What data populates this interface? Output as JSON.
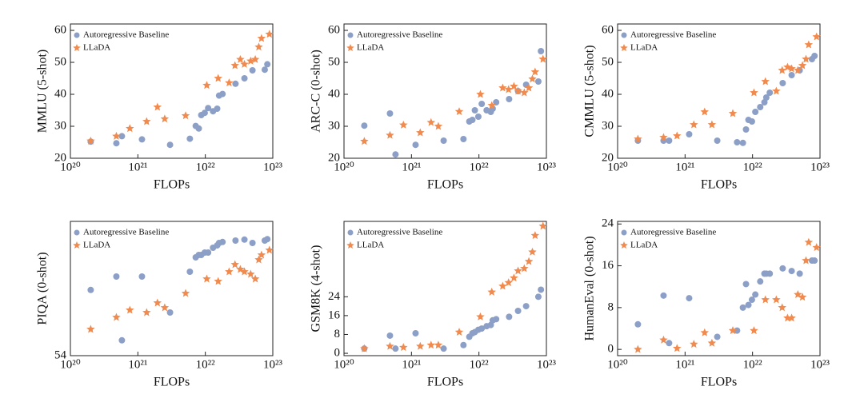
{
  "chart_data": [
    {
      "type": "scatter",
      "xlabel": "FLOPs",
      "ylabel": "MMLU (5-shot)",
      "xscale": "log",
      "legend": "upper left",
      "xlim": [
        1e+20,
        1e+23
      ],
      "xticks": [
        {
          "value": 1e+20,
          "label": "10²⁰"
        },
        {
          "value": 1e+21,
          "label": "10²¹"
        },
        {
          "value": 1e+22,
          "label": "10²²"
        },
        {
          "value": 1e+23,
          "label": "10²³"
        }
      ],
      "ylim": [
        20,
        62
      ],
      "yticks": [
        20,
        30,
        40,
        50,
        60
      ],
      "series": [
        {
          "name": "Autoregressive Baseline",
          "color": "#8c9fc6",
          "marker": "circle",
          "x": [
            2e+20,
            4.8e+20,
            5.8e+20,
            1.15e+21,
            3e+21,
            5.9e+21,
            7.2e+21,
            8e+21,
            8.7e+21,
            9.8e+21,
            1.1e+22,
            1.3e+22,
            1.5e+22,
            1.6e+22,
            1.8e+22,
            2.8e+22,
            3.8e+22,
            5e+22,
            7.6e+22,
            8.3e+22
          ],
          "values": [
            25.2,
            24.7,
            26.9,
            25.9,
            24.2,
            26.1,
            30.1,
            29.3,
            33.5,
            34.2,
            35.7,
            34.7,
            35.5,
            39.6,
            40.1,
            43.3,
            45,
            47.5,
            47.7,
            49.4
          ]
        },
        {
          "name": "LLaDA",
          "color": "#f08a4e",
          "marker": "star",
          "x": [
            2e+20,
            4.8e+20,
            7.6e+20,
            1.35e+21,
            1.95e+21,
            2.5e+21,
            5.1e+21,
            1.05e+22,
            1.55e+22,
            2.25e+22,
            2.75e+22,
            3.3e+22,
            3.8e+22,
            4.7e+22,
            5.5e+22,
            6.2e+22,
            6.8e+22,
            8.9e+22
          ],
          "values": [
            25.4,
            26.9,
            29.3,
            31.5,
            36,
            32.3,
            33.3,
            42.8,
            45,
            43.6,
            49,
            50.9,
            49.4,
            50.4,
            50.9,
            54.8,
            57.5,
            58.8
          ]
        }
      ]
    },
    {
      "type": "scatter",
      "xlabel": "FLOPs",
      "ylabel": "ARC-C (0-shot)",
      "xscale": "log",
      "legend": "upper left",
      "xlim": [
        1e+20,
        1e+23
      ],
      "xticks": [
        {
          "value": 1e+20,
          "label": "10²⁰"
        },
        {
          "value": 1e+21,
          "label": "10²¹"
        },
        {
          "value": 1e+22,
          "label": "10²²"
        },
        {
          "value": 1e+23,
          "label": "10²³"
        }
      ],
      "ylim": [
        20,
        62
      ],
      "yticks": [
        20,
        30,
        40,
        50,
        60
      ],
      "series": [
        {
          "name": "Autoregressive Baseline",
          "color": "#8c9fc6",
          "marker": "circle",
          "x": [
            2e+20,
            4.8e+20,
            5.8e+20,
            1.15e+21,
            3e+21,
            5.9e+21,
            7.2e+21,
            8e+21,
            8.7e+21,
            9.8e+21,
            1.1e+22,
            1.3e+22,
            1.5e+22,
            1.6e+22,
            1.8e+22,
            2.8e+22,
            3.8e+22,
            5e+22,
            7.6e+22,
            8.3e+22
          ],
          "values": [
            30.2,
            34,
            21.2,
            24.2,
            25.5,
            26,
            31.5,
            32,
            35,
            33,
            37,
            35,
            34.5,
            35.5,
            37.5,
            38.5,
            41,
            43,
            44,
            53.5
          ]
        },
        {
          "name": "LLaDA",
          "color": "#f08a4e",
          "marker": "star",
          "x": [
            2e+20,
            4.8e+20,
            7.6e+20,
            1.35e+21,
            1.95e+21,
            2.5e+21,
            5.1e+21,
            1.05e+22,
            1.55e+22,
            2.25e+22,
            2.75e+22,
            3.3e+22,
            3.8e+22,
            4.7e+22,
            5.5e+22,
            6.2e+22,
            6.8e+22,
            8.9e+22
          ],
          "values": [
            25.3,
            27.2,
            30.4,
            28,
            31.2,
            30,
            34.6,
            40,
            36.5,
            42,
            41.5,
            42.5,
            41,
            40.5,
            42,
            44.8,
            47,
            51
          ]
        }
      ]
    },
    {
      "type": "scatter",
      "xlabel": "FLOPs",
      "ylabel": "CMMLU (5-shot)",
      "xscale": "log",
      "legend": "upper left",
      "xlim": [
        1e+20,
        1e+23
      ],
      "xticks": [
        {
          "value": 1e+20,
          "label": "10²⁰"
        },
        {
          "value": 1e+21,
          "label": "10²¹"
        },
        {
          "value": 1e+22,
          "label": "10²²"
        },
        {
          "value": 1e+23,
          "label": "10²³"
        }
      ],
      "ylim": [
        20,
        62
      ],
      "yticks": [
        20,
        30,
        40,
        50,
        60
      ],
      "series": [
        {
          "name": "Autoregressive Baseline",
          "color": "#8c9fc6",
          "marker": "circle",
          "x": [
            2e+20,
            4.8e+20,
            5.8e+20,
            1.15e+21,
            3e+21,
            5.9e+21,
            7.2e+21,
            8e+21,
            8.7e+21,
            9.8e+21,
            1.1e+22,
            1.3e+22,
            1.5e+22,
            1.6e+22,
            1.8e+22,
            2.8e+22,
            3.8e+22,
            5e+22,
            7.6e+22,
            8.3e+22
          ],
          "values": [
            25.5,
            25.5,
            25.5,
            27.5,
            25.5,
            25,
            24.8,
            29,
            32,
            31.5,
            34.5,
            36,
            37.5,
            39,
            40.5,
            43.5,
            46,
            47.5,
            51,
            52
          ]
        },
        {
          "name": "LLaDA",
          "color": "#f08a4e",
          "marker": "star",
          "x": [
            2e+20,
            4.8e+20,
            7.6e+20,
            1.35e+21,
            1.95e+21,
            2.5e+21,
            5.1e+21,
            1.05e+22,
            1.55e+22,
            2.25e+22,
            2.75e+22,
            3.3e+22,
            3.8e+22,
            4.7e+22,
            5.5e+22,
            6.2e+22,
            6.8e+22,
            8.9e+22
          ],
          "values": [
            26,
            26.5,
            27,
            30.5,
            34.5,
            30.5,
            34,
            40.5,
            44,
            41,
            47.5,
            48.5,
            48,
            47.5,
            49,
            51,
            55.5,
            58
          ]
        }
      ]
    },
    {
      "type": "scatter",
      "xlabel": "FLOPs",
      "ylabel": "PIQA (0-shot)",
      "xscale": "log",
      "legend": "upper left",
      "xlim": [
        1e+20,
        1e+23
      ],
      "xticks": [
        {
          "value": 1e+20,
          "label": "10²⁰"
        },
        {
          "value": 1e+21,
          "label": "10²¹"
        },
        {
          "value": 1e+22,
          "label": "10²²"
        },
        {
          "value": 1e+23,
          "label": "10²³"
        }
      ],
      "ylim": [
        54,
        82
      ],
      "yticks": [
        54
      ],
      "series": [
        {
          "name": "Autoregressive Baseline",
          "color": "#8c9fc6",
          "marker": "circle",
          "x": [
            2e+20,
            4.8e+20,
            5.8e+20,
            1.15e+21,
            3e+21,
            5.9e+21,
            7.2e+21,
            8e+21,
            8.7e+21,
            9.8e+21,
            1.1e+22,
            1.3e+22,
            1.5e+22,
            1.6e+22,
            1.8e+22,
            2.8e+22,
            3.8e+22,
            5e+22,
            7.6e+22,
            8.3e+22
          ],
          "values": [
            67.7,
            70.5,
            57.2,
            70.5,
            63,
            71.5,
            74.5,
            75,
            75,
            75.5,
            75.5,
            76.5,
            77,
            77.5,
            77.7,
            78,
            78.2,
            77.5,
            78,
            78.3
          ]
        },
        {
          "name": "LLaDA",
          "color": "#f08a4e",
          "marker": "star",
          "x": [
            2e+20,
            4.8e+20,
            7.6e+20,
            1.35e+21,
            1.95e+21,
            2.5e+21,
            5.1e+21,
            1.05e+22,
            1.55e+22,
            2.25e+22,
            2.75e+22,
            3.3e+22,
            3.8e+22,
            4.7e+22,
            5.5e+22,
            6.2e+22,
            6.8e+22,
            8.9e+22
          ],
          "values": [
            59.5,
            62,
            63.5,
            63,
            65,
            64,
            67,
            70,
            69.5,
            71.5,
            73,
            72,
            71.5,
            71,
            70,
            74,
            75,
            76
          ]
        }
      ]
    },
    {
      "type": "scatter",
      "xlabel": "FLOPs",
      "ylabel": "GSM8K (4-shot)",
      "xscale": "log",
      "legend": "upper left",
      "xlim": [
        1e+20,
        1e+23
      ],
      "xticks": [
        {
          "value": 1e+20,
          "label": "10²⁰"
        },
        {
          "value": 1e+21,
          "label": "10²¹"
        },
        {
          "value": 1e+22,
          "label": "10²²"
        },
        {
          "value": 1e+23,
          "label": "10²³"
        }
      ],
      "ylim": [
        -1,
        56
      ],
      "yticks": [
        0,
        8,
        16,
        24
      ],
      "series": [
        {
          "name": "Autoregressive Baseline",
          "color": "#8c9fc6",
          "marker": "circle",
          "x": [
            2e+20,
            4.8e+20,
            5.8e+20,
            1.15e+21,
            3e+21,
            5.9e+21,
            7.2e+21,
            8e+21,
            8.7e+21,
            9.8e+21,
            1.1e+22,
            1.3e+22,
            1.5e+22,
            1.6e+22,
            1.8e+22,
            2.8e+22,
            3.8e+22,
            5e+22,
            7.6e+22,
            8.3e+22
          ],
          "values": [
            2,
            7.5,
            2,
            8.5,
            2,
            3.5,
            7,
            8.5,
            9,
            10,
            10.5,
            11.5,
            12,
            14,
            14.5,
            15.5,
            18,
            20,
            24,
            27
          ]
        },
        {
          "name": "LLaDA",
          "color": "#f08a4e",
          "marker": "star",
          "x": [
            2e+20,
            4.8e+20,
            7.6e+20,
            1.35e+21,
            1.95e+21,
            2.5e+21,
            5.1e+21,
            1.05e+22,
            1.55e+22,
            2.25e+22,
            2.75e+22,
            3.3e+22,
            3.8e+22,
            4.7e+22,
            5.5e+22,
            6.2e+22,
            6.8e+22,
            8.9e+22
          ],
          "values": [
            2,
            3,
            2.5,
            3,
            3.5,
            3.5,
            9,
            15.5,
            26,
            28.5,
            30,
            32,
            35,
            36,
            39,
            43,
            50,
            54
          ]
        }
      ]
    },
    {
      "type": "scatter",
      "xlabel": "FLOPs",
      "ylabel": "HumanEval (0-shot)",
      "xscale": "log",
      "legend": "upper left",
      "xlim": [
        1e+20,
        1e+23
      ],
      "xticks": [
        {
          "value": 1e+20,
          "label": "10²⁰"
        },
        {
          "value": 1e+21,
          "label": "10²¹"
        },
        {
          "value": 1e+22,
          "label": "10²²"
        },
        {
          "value": 1e+23,
          "label": "10²³"
        }
      ],
      "ylim": [
        -1.2,
        24.5
      ],
      "yticks": [
        0,
        8,
        16,
        24
      ],
      "series": [
        {
          "name": "Autoregressive Baseline",
          "color": "#8c9fc6",
          "marker": "circle",
          "x": [
            2e+20,
            4.8e+20,
            5.8e+20,
            1.15e+21,
            3e+21,
            5.9e+21,
            7.2e+21,
            8e+21,
            8.7e+21,
            9.8e+21,
            1.1e+22,
            1.3e+22,
            1.5e+22,
            1.6e+22,
            1.8e+22,
            2.8e+22,
            3.8e+22,
            5e+22,
            7.6e+22,
            8.3e+22
          ],
          "values": [
            4.8,
            10.3,
            1.2,
            9.8,
            2.4,
            3.6,
            8,
            12.5,
            8.5,
            9.5,
            10.5,
            13,
            14.5,
            14.5,
            14.5,
            15.5,
            15,
            14.5,
            17,
            17
          ]
        },
        {
          "name": "LLaDA",
          "color": "#f08a4e",
          "marker": "star",
          "x": [
            2e+20,
            4.8e+20,
            7.6e+20,
            1.35e+21,
            1.95e+21,
            2.5e+21,
            5.1e+21,
            1.05e+22,
            1.55e+22,
            2.25e+22,
            2.75e+22,
            3.3e+22,
            3.8e+22,
            4.7e+22,
            5.5e+22,
            6.2e+22,
            6.8e+22,
            8.9e+22
          ],
          "values": [
            0,
            1.8,
            0.2,
            1,
            3.2,
            1.2,
            3.6,
            3.6,
            9.5,
            9.5,
            8,
            6,
            6,
            10.5,
            10,
            17,
            20.5,
            19.5
          ]
        }
      ]
    }
  ]
}
